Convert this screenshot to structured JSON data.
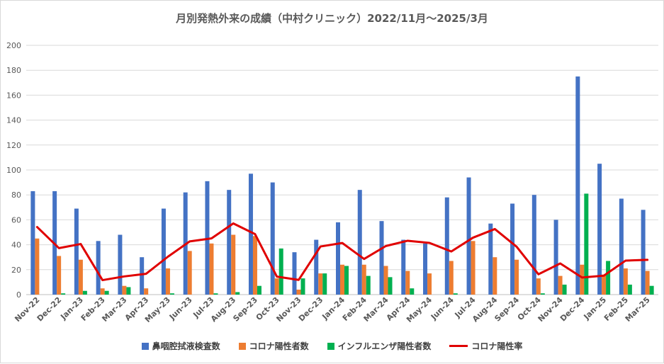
{
  "chart_data": {
    "type": "bar",
    "title": "月別発熱外来の成績（中村クリニック）2022/11月～2025/3月",
    "ylim": [
      0,
      200
    ],
    "yticks": [
      0,
      20,
      40,
      60,
      80,
      100,
      120,
      140,
      160,
      180,
      200
    ],
    "grid": true,
    "legend_position": "bottom",
    "categories": [
      "Nov-22",
      "Dec-22",
      "Jan-23",
      "Feb-23",
      "Mar-23",
      "Apr-23",
      "May-23",
      "Jun-23",
      "Jul-23",
      "Aug-23",
      "Sep-23",
      "Oct-23",
      "Nov-23",
      "Dec-23",
      "Jan-24",
      "Feb-24",
      "Mar-24",
      "Apr-24",
      "May-24",
      "Jun-24",
      "Jul-24",
      "Aug-24",
      "Sep-24",
      "Oct-24",
      "Nov-24",
      "Dec-24",
      "Jan-25",
      "Feb-25",
      "Mar-25"
    ],
    "series": [
      {
        "name": "鼻咽腔拭液検査数",
        "type": "bar",
        "color": "#4472c4",
        "values": [
          83,
          83,
          69,
          43,
          48,
          30,
          69,
          82,
          91,
          84,
          97,
          90,
          34,
          44,
          58,
          84,
          59,
          44,
          41,
          78,
          94,
          57,
          73,
          80,
          60,
          175,
          105,
          77,
          68
        ]
      },
      {
        "name": "コロナ陽性者数",
        "type": "bar",
        "color": "#ed7d31",
        "values": [
          45,
          31,
          28,
          5,
          7,
          5,
          21,
          35,
          41,
          48,
          47,
          13,
          4,
          17,
          24,
          24,
          23,
          19,
          17,
          27,
          43,
          30,
          28,
          13,
          15,
          24,
          16,
          21,
          19
        ]
      },
      {
        "name": "インフルエンザ陽性者数",
        "type": "bar",
        "color": "#00b050",
        "values": [
          0,
          1,
          3,
          3,
          6,
          0,
          1,
          0,
          1,
          2,
          7,
          37,
          13,
          17,
          23,
          15,
          14,
          5,
          0,
          1,
          0,
          0,
          0,
          1,
          8,
          81,
          27,
          8,
          7
        ]
      },
      {
        "name": "コロナ陽性率",
        "type": "line",
        "color": "#e00000",
        "values": [
          54.2,
          37.3,
          40.6,
          11.6,
          14.6,
          16.7,
          30.4,
          42.7,
          45.1,
          57.1,
          48.5,
          14.4,
          11.8,
          38.6,
          41.4,
          28.6,
          39.0,
          43.2,
          41.5,
          34.6,
          45.7,
          52.6,
          38.4,
          16.3,
          25.0,
          13.7,
          15.2,
          27.3,
          27.9
        ]
      }
    ]
  }
}
